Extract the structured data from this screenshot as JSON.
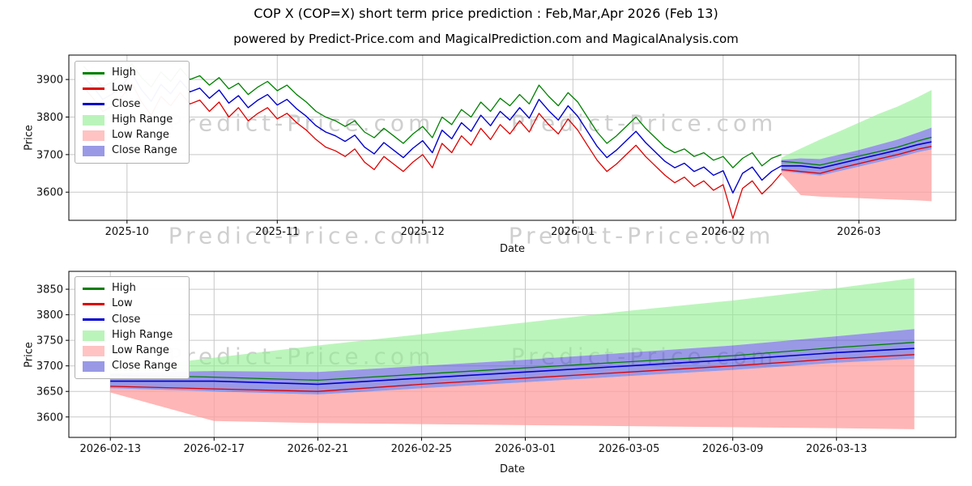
{
  "figure": {
    "title": "COP X (COP=X) short term price prediction : Feb,Mar,Apr 2026 (Feb 13)",
    "subtitle": "powered by Predict-Price.com and MagicalPrediction.com and MagicalAnalysis.com",
    "watermark_text": "Predict-Price.com"
  },
  "colors": {
    "high": "#008000",
    "low": "#dd0000",
    "close": "#0000cc",
    "high_range": "#90ee90",
    "low_range": "#ff9e9e",
    "close_range": "#5a5ad6",
    "grid": "#c8c8c8",
    "tick_text": "#111111"
  },
  "legend": [
    {
      "label": "High",
      "type": "line",
      "color_key": "high"
    },
    {
      "label": "Low",
      "type": "line",
      "color_key": "low"
    },
    {
      "label": "Close",
      "type": "line",
      "color_key": "close"
    },
    {
      "label": "High Range",
      "type": "patch",
      "color_key": "high_range"
    },
    {
      "label": "Low Range",
      "type": "patch",
      "color_key": "low_range"
    },
    {
      "label": "Close Range",
      "type": "patch",
      "color_key": "close_range"
    }
  ],
  "chart_data": [
    {
      "id": "top",
      "type": "line",
      "title": "",
      "xlabel": "Date",
      "ylabel": "Price",
      "grid": true,
      "legend_position": "upper-left",
      "xlim": [
        -3,
        180
      ],
      "ylim": [
        3525,
        3965
      ],
      "y_ticks": [
        3600,
        3700,
        3800,
        3900
      ],
      "x_ticks": [
        {
          "v": 9,
          "label": "2025-10"
        },
        {
          "v": 40,
          "label": "2025-11"
        },
        {
          "v": 70,
          "label": "2025-12"
        },
        {
          "v": 101,
          "label": "2026-01"
        },
        {
          "v": 132,
          "label": "2026-02"
        },
        {
          "v": 160,
          "label": "2026-03"
        }
      ],
      "history": {
        "x": [
          0,
          2,
          4,
          6,
          8,
          10,
          12,
          14,
          16,
          18,
          20,
          22,
          24,
          26,
          28,
          30,
          32,
          34,
          36,
          38,
          40,
          42,
          44,
          46,
          48,
          50,
          52,
          54,
          56,
          58,
          60,
          62,
          64,
          66,
          68,
          70,
          72,
          74,
          76,
          78,
          80,
          82,
          84,
          86,
          88,
          90,
          92,
          94,
          96,
          98,
          100,
          102,
          104,
          106,
          108,
          110,
          112,
          114,
          116,
          118,
          120,
          122,
          124,
          126,
          128,
          130,
          132,
          134,
          136,
          138,
          140,
          142,
          144
        ],
        "high": [
          3935,
          3910,
          3880,
          3895,
          3915,
          3942,
          3905,
          3880,
          3920,
          3895,
          3930,
          3900,
          3910,
          3885,
          3905,
          3875,
          3890,
          3860,
          3880,
          3895,
          3870,
          3885,
          3860,
          3840,
          3815,
          3800,
          3790,
          3775,
          3790,
          3760,
          3745,
          3770,
          3750,
          3730,
          3755,
          3775,
          3745,
          3800,
          3780,
          3820,
          3800,
          3840,
          3815,
          3850,
          3830,
          3860,
          3835,
          3885,
          3855,
          3830,
          3865,
          3840,
          3800,
          3760,
          3730,
          3750,
          3775,
          3800,
          3770,
          3745,
          3720,
          3705,
          3715,
          3695,
          3705,
          3685,
          3695,
          3665,
          3690,
          3705,
          3670,
          3690,
          3700
        ],
        "low": [
          3880,
          3850,
          3815,
          3830,
          3855,
          3890,
          3840,
          3805,
          3855,
          3830,
          3865,
          3835,
          3845,
          3815,
          3840,
          3800,
          3825,
          3790,
          3810,
          3825,
          3795,
          3810,
          3785,
          3765,
          3740,
          3720,
          3710,
          3695,
          3715,
          3680,
          3660,
          3695,
          3675,
          3655,
          3680,
          3700,
          3665,
          3730,
          3705,
          3750,
          3725,
          3770,
          3740,
          3780,
          3755,
          3790,
          3760,
          3810,
          3780,
          3755,
          3795,
          3765,
          3725,
          3685,
          3655,
          3675,
          3700,
          3725,
          3695,
          3670,
          3645,
          3625,
          3640,
          3615,
          3630,
          3605,
          3620,
          3530,
          3610,
          3630,
          3595,
          3620,
          3650
        ],
        "close": [
          3907,
          3880,
          3847,
          3862,
          3885,
          3916,
          3872,
          3842,
          3887,
          3862,
          3897,
          3867,
          3877,
          3850,
          3872,
          3837,
          3857,
          3825,
          3845,
          3860,
          3832,
          3847,
          3822,
          3802,
          3777,
          3760,
          3750,
          3735,
          3752,
          3720,
          3702,
          3732,
          3712,
          3692,
          3717,
          3737,
          3705,
          3765,
          3742,
          3785,
          3762,
          3805,
          3777,
          3815,
          3792,
          3825,
          3797,
          3847,
          3817,
          3792,
          3830,
          3802,
          3762,
          3722,
          3692,
          3712,
          3737,
          3762,
          3732,
          3707,
          3682,
          3665,
          3677,
          3655,
          3667,
          3645,
          3657,
          3598,
          3650,
          3667,
          3632,
          3655,
          3670
        ]
      },
      "forecast": {
        "x": [
          144,
          148,
          152,
          156,
          160,
          164,
          168,
          172,
          175
        ],
        "high": [
          3682,
          3678,
          3672,
          3684,
          3696,
          3708,
          3720,
          3736,
          3746
        ],
        "low": [
          3660,
          3655,
          3650,
          3664,
          3676,
          3688,
          3700,
          3714,
          3722
        ],
        "close": [
          3670,
          3670,
          3664,
          3676,
          3688,
          3700,
          3712,
          3726,
          3734
        ],
        "high_upper": [
          3692,
          3716,
          3740,
          3762,
          3785,
          3808,
          3828,
          3852,
          3872
        ],
        "close_upper": [
          3686,
          3690,
          3688,
          3700,
          3712,
          3726,
          3740,
          3758,
          3772
        ],
        "close_lower": [
          3656,
          3650,
          3644,
          3656,
          3668,
          3680,
          3692,
          3706,
          3714
        ],
        "low_lower": [
          3648,
          3592,
          3588,
          3586,
          3584,
          3582,
          3580,
          3578,
          3576
        ]
      }
    },
    {
      "id": "bottom",
      "type": "line",
      "title": "",
      "xlabel": "Date",
      "ylabel": "Price",
      "grid": true,
      "legend_position": "upper-left",
      "xlim": [
        -1.6,
        32.6
      ],
      "ylim": [
        3560,
        3885
      ],
      "y_ticks": [
        3600,
        3650,
        3700,
        3750,
        3800,
        3850
      ],
      "x_ticks": [
        {
          "v": 0,
          "label": "2026-02-13"
        },
        {
          "v": 4,
          "label": "2026-02-17"
        },
        {
          "v": 8,
          "label": "2026-02-21"
        },
        {
          "v": 12,
          "label": "2026-02-25"
        },
        {
          "v": 16,
          "label": "2026-03-01"
        },
        {
          "v": 20,
          "label": "2026-03-05"
        },
        {
          "v": 24,
          "label": "2026-03-09"
        },
        {
          "v": 28,
          "label": "2026-03-13"
        }
      ],
      "forecast": {
        "x": [
          0,
          4,
          8,
          12,
          16,
          20,
          24,
          28,
          31
        ],
        "high": [
          3682,
          3678,
          3672,
          3684,
          3696,
          3708,
          3720,
          3736,
          3746
        ],
        "low": [
          3660,
          3655,
          3650,
          3664,
          3676,
          3688,
          3700,
          3714,
          3722
        ],
        "close": [
          3670,
          3670,
          3664,
          3676,
          3688,
          3700,
          3712,
          3726,
          3734
        ],
        "high_upper": [
          3692,
          3716,
          3740,
          3762,
          3785,
          3808,
          3828,
          3852,
          3872
        ],
        "close_upper": [
          3686,
          3690,
          3688,
          3700,
          3712,
          3726,
          3740,
          3758,
          3772
        ],
        "close_lower": [
          3656,
          3650,
          3644,
          3656,
          3668,
          3680,
          3692,
          3706,
          3714
        ],
        "low_lower": [
          3648,
          3592,
          3588,
          3586,
          3584,
          3582,
          3580,
          3578,
          3576
        ]
      }
    }
  ]
}
